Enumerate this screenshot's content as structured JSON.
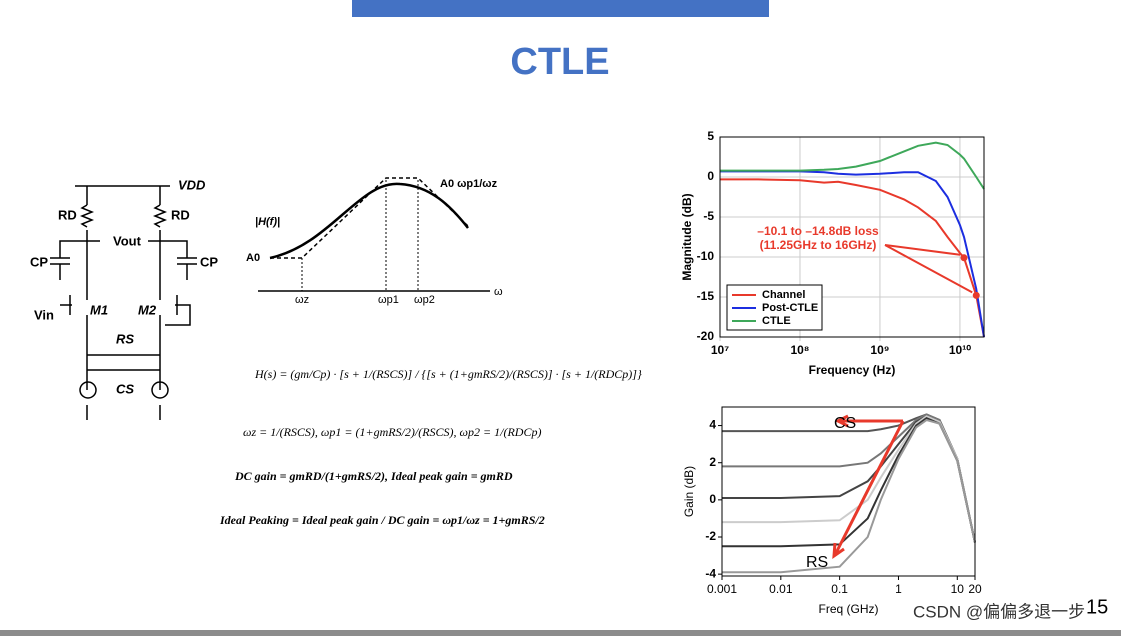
{
  "title": "CTLE",
  "circuit": {
    "vdd": "VDD",
    "rd_left": "RD",
    "rd_right": "RD",
    "vout": "Vout",
    "cp_left": "CP",
    "cp_right": "CP",
    "vin": "Vin",
    "m1": "M1",
    "m2": "M2",
    "rs": "RS",
    "cs": "CS"
  },
  "bode": {
    "ylabel": "|H(f)|",
    "a0": "A0",
    "peak": "A0 ωp1/ωz",
    "wz": "ωz",
    "wp1": "ωp1",
    "wp2": "ωp2",
    "w": "ω"
  },
  "equations": [
    "H(s) = (gm/Cp) · [s + 1/(RSCS)] / {[s + (1+gmRS/2)/(RSCS)] · [s + 1/(RDCp)]}",
    "ωz = 1/(RSCS),   ωp1 = (1+gmRS/2)/(RSCS),   ωp2 = 1/(RDCp)",
    "DC gain = gmRD/(1+gmRS/2),  Ideal peak gain = gmRD",
    "Ideal Peaking = Ideal peak gain / DC gain = ωp1/ωz = 1+gmRS/2"
  ],
  "charts": [
    {
      "type": "line",
      "xlog": true,
      "xlabel": "Frequency (Hz)",
      "ylabel": "Magnitude (dB)",
      "xlim": [
        10000000,
        20000000000
      ],
      "ylim": [
        -20,
        5
      ],
      "xticks": [
        {
          "value": 10000000,
          "label": "10⁷"
        },
        {
          "value": 100000000,
          "label": "10⁸"
        },
        {
          "value": 1000000000,
          "label": "10⁹"
        },
        {
          "value": 10000000000,
          "label": "10¹⁰"
        }
      ],
      "yticks": [
        5,
        0,
        -5,
        -10,
        -15,
        -20
      ],
      "grid": true,
      "legend": "lower-left",
      "x": [
        10000000,
        30000000,
        100000000,
        200000000,
        300000000,
        500000000,
        1000000000,
        2000000000,
        3000000000,
        5000000000,
        7000000000,
        10000000000,
        11250000000,
        16000000000,
        20000000000
      ],
      "series": [
        {
          "name": "Channel",
          "color": "#e8392b",
          "values": [
            -0.3,
            -0.3,
            -0.4,
            -0.7,
            -0.6,
            -1,
            -1.6,
            -2.8,
            -3.8,
            -5.5,
            -7.5,
            -9.5,
            -10.1,
            -14.8,
            -20
          ]
        },
        {
          "name": "Post-CTLE",
          "color": "#1c2ee0",
          "values": [
            0.7,
            0.7,
            0.7,
            0.6,
            0.4,
            0.3,
            0.4,
            0.6,
            0.6,
            -0.5,
            -2.5,
            -6,
            -7.5,
            -14,
            -20
          ]
        },
        {
          "name": "CTLE",
          "color": "#3ea85a",
          "values": [
            0.8,
            0.8,
            0.8,
            0.9,
            1,
            1.3,
            2,
            3.2,
            3.9,
            4.3,
            4,
            2.8,
            2.3,
            0,
            -1.5
          ]
        }
      ],
      "markers": [
        {
          "x": 11250000000,
          "y": -10.1
        },
        {
          "x": 16000000000,
          "y": -14.8
        }
      ],
      "annotation": [
        "–10.1 to –14.8dB loss",
        "(11.25GHz to 16GHz)"
      ]
    },
    {
      "type": "line",
      "xlog": true,
      "xlabel": "Freq (GHz)",
      "ylabel": "Gain (dB)",
      "xlim": [
        0.001,
        20
      ],
      "ylim": [
        -4.1,
        5
      ],
      "xticks": [
        0.001,
        0.01,
        0.1,
        1,
        10,
        20
      ],
      "yticks": [
        4,
        2,
        0,
        -2,
        -4
      ],
      "grid": false,
      "x": [
        0.001,
        0.01,
        0.1,
        0.3,
        0.5,
        1,
        2,
        3,
        5,
        10,
        20
      ],
      "series": [
        {
          "color": "#555555",
          "values": [
            3.7,
            3.7,
            3.7,
            3.7,
            3.8,
            4.0,
            4.4,
            4.6,
            4.3,
            2.2,
            -2.3
          ]
        },
        {
          "color": "#777777",
          "values": [
            1.8,
            1.8,
            1.8,
            2.0,
            2.5,
            3.4,
            4.3,
            4.6,
            4.3,
            2.2,
            -2.3
          ]
        },
        {
          "color": "#444444",
          "values": [
            0.1,
            0.1,
            0.2,
            1.0,
            1.8,
            3.0,
            4.2,
            4.5,
            4.2,
            2.2,
            -2.3
          ]
        },
        {
          "color": "#cccccc",
          "values": [
            -1.2,
            -1.2,
            -1.1,
            0,
            1.2,
            2.7,
            4.1,
            4.5,
            4.2,
            2.2,
            -2.3
          ]
        },
        {
          "color": "#333333",
          "values": [
            -2.5,
            -2.5,
            -2.4,
            -1,
            0.5,
            2.4,
            4.0,
            4.4,
            4.1,
            2.1,
            -2.3
          ]
        },
        {
          "color": "#999999",
          "values": [
            -3.9,
            -3.9,
            -3.6,
            -2,
            0,
            2.2,
            3.9,
            4.3,
            4.1,
            2.1,
            -2.3
          ]
        }
      ],
      "annotation": [
        "CS",
        "RS"
      ]
    }
  ],
  "page_number": "15",
  "watermark": "CSDN @偏偏多退一步"
}
